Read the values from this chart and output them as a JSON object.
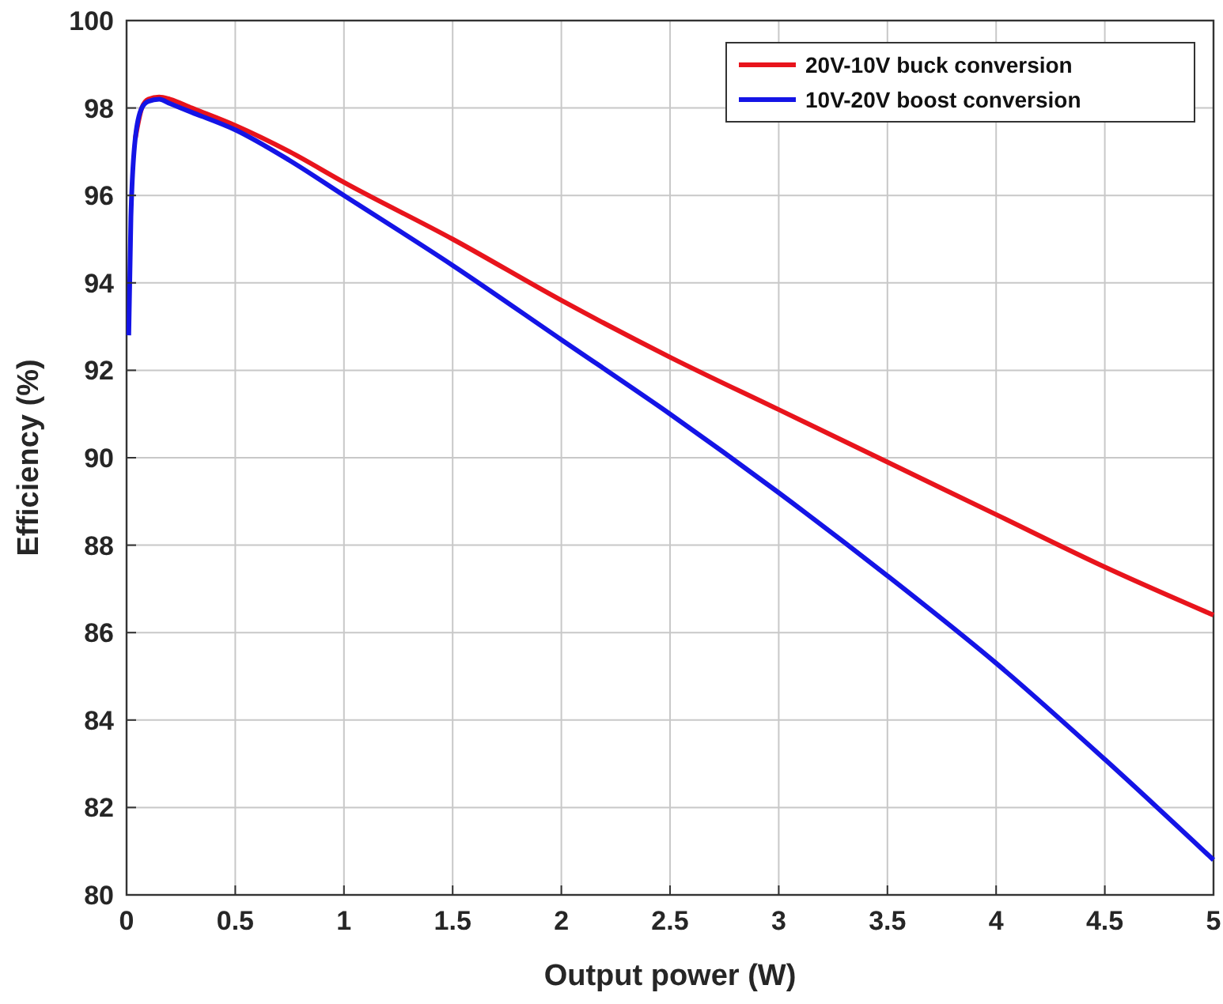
{
  "chart_data": {
    "type": "line",
    "xlabel": "Output power (W)",
    "ylabel": "Efficiency (%)",
    "xlim": [
      0,
      5
    ],
    "ylim": [
      80,
      100
    ],
    "xticks": [
      0,
      0.5,
      1,
      1.5,
      2,
      2.5,
      3,
      3.5,
      4,
      4.5,
      5
    ],
    "yticks": [
      80,
      82,
      84,
      86,
      88,
      90,
      92,
      94,
      96,
      98,
      100
    ],
    "grid": true,
    "legend": "top right",
    "marker": "none",
    "line_style": "solid",
    "series": [
      {
        "name": "20V-10V buck conversion",
        "color": "#e8141c",
        "x": [
          0.04,
          0.07,
          0.1,
          0.15,
          0.2,
          0.3,
          0.5,
          0.75,
          1,
          1.5,
          2,
          2.5,
          3,
          3.5,
          4,
          4.5,
          5
        ],
        "values": [
          97.3,
          98.0,
          98.2,
          98.25,
          98.2,
          98.0,
          97.6,
          97.0,
          96.3,
          95.0,
          93.6,
          92.3,
          91.1,
          89.9,
          88.7,
          87.5,
          86.4
        ]
      },
      {
        "name": "10V-20V boost conversion",
        "color": "#1414e6",
        "x": [
          0.01,
          0.02,
          0.04,
          0.07,
          0.1,
          0.15,
          0.2,
          0.3,
          0.5,
          0.75,
          1,
          1.5,
          2,
          2.5,
          3,
          3.5,
          4,
          4.5,
          5
        ],
        "values": [
          92.8,
          95.5,
          97.3,
          98.0,
          98.15,
          98.2,
          98.1,
          97.9,
          97.5,
          96.8,
          96.0,
          94.4,
          92.7,
          91.0,
          89.2,
          87.3,
          85.3,
          83.1,
          80.8
        ]
      }
    ]
  }
}
